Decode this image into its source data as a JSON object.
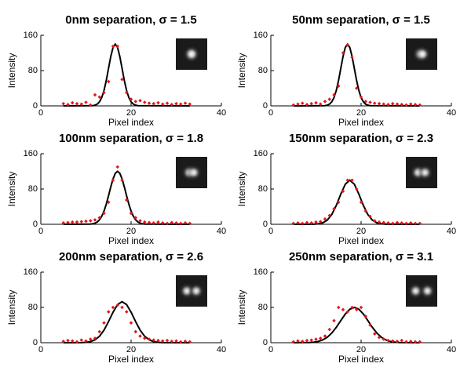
{
  "chart_data": [
    {
      "type": "line",
      "title": "0nm separation, σ = 1.5",
      "xlabel": "Pixel index",
      "ylabel": "Intensity",
      "xlim": [
        0,
        40
      ],
      "ylim": [
        0,
        160
      ],
      "xticks": [
        0,
        20,
        40
      ],
      "yticks": [
        0,
        80,
        160
      ],
      "series": [
        {
          "type": "scatter",
          "color": "#e8141a",
          "x": [
            5,
            6,
            7,
            8,
            9,
            10,
            11,
            12,
            13,
            14,
            15,
            16,
            17,
            18,
            19,
            20,
            21,
            22,
            23,
            24,
            25,
            26,
            27,
            28,
            29,
            30,
            31,
            32,
            33
          ],
          "values": [
            5,
            3,
            7,
            5,
            4,
            8,
            2,
            25,
            20,
            30,
            55,
            135,
            135,
            60,
            30,
            15,
            10,
            12,
            8,
            6,
            5,
            7,
            4,
            6,
            3,
            5,
            4,
            6,
            4
          ]
        },
        {
          "type": "line",
          "color": "#000000",
          "x": [
            5,
            11.5,
            12,
            12.5,
            13,
            13.5,
            14,
            14.5,
            15,
            15.5,
            16,
            16.5,
            17,
            17.5,
            18,
            18.5,
            19,
            19.5,
            20,
            20.5,
            21,
            21.5,
            33
          ],
          "values": [
            0,
            0.5,
            1.6,
            4,
            9.2,
            18.9,
            34.9,
            57.5,
            84.9,
            112.1,
            132.4,
            140,
            132.4,
            112.1,
            84.9,
            57.5,
            34.9,
            18.9,
            9.2,
            4,
            1.6,
            0.5,
            0
          ]
        }
      ]
    },
    {
      "type": "line",
      "title": "50nm separation, σ = 1.5",
      "xlabel": "Pixel index",
      "ylabel": "Intensity",
      "xlim": [
        0,
        40
      ],
      "ylim": [
        0,
        160
      ],
      "xticks": [
        0,
        20,
        40
      ],
      "yticks": [
        0,
        80,
        160
      ],
      "series": [
        {
          "type": "scatter",
          "color": "#e8141a",
          "x": [
            5,
            6,
            7,
            8,
            9,
            10,
            11,
            12,
            13,
            14,
            15,
            16,
            17,
            18,
            19,
            20,
            21,
            22,
            23,
            24,
            25,
            26,
            27,
            28,
            29,
            30,
            31,
            32,
            33
          ],
          "values": [
            2,
            4,
            6,
            3,
            5,
            7,
            4,
            10,
            15,
            25,
            45,
            120,
            138,
            110,
            40,
            20,
            10,
            8,
            6,
            5,
            4,
            3,
            5,
            4,
            3,
            2,
            4,
            3,
            2
          ]
        },
        {
          "type": "line",
          "color": "#000000",
          "x": [
            5,
            12,
            12.5,
            13,
            13.5,
            14,
            14.5,
            15,
            15.5,
            16,
            16.5,
            17,
            17.5,
            18,
            18.5,
            19,
            19.5,
            20,
            20.5,
            21,
            21.5,
            22,
            33
          ],
          "values": [
            0,
            0.5,
            1.6,
            4,
            9.2,
            18.9,
            34.9,
            57.5,
            84.9,
            112.1,
            132.4,
            140,
            132.4,
            112.1,
            84.9,
            57.5,
            34.9,
            18.9,
            9.2,
            4,
            1.6,
            0.5,
            0
          ]
        }
      ]
    },
    {
      "type": "line",
      "title": "100nm separation, σ = 1.8",
      "xlabel": "Pixel index",
      "ylabel": "Intensity",
      "xlim": [
        0,
        40
      ],
      "ylim": [
        0,
        160
      ],
      "xticks": [
        0,
        20,
        40
      ],
      "yticks": [
        0,
        80,
        160
      ],
      "series": [
        {
          "type": "scatter",
          "color": "#e8141a",
          "x": [
            5,
            6,
            7,
            8,
            9,
            10,
            11,
            12,
            13,
            14,
            15,
            16,
            17,
            18,
            19,
            20,
            21,
            22,
            23,
            24,
            25,
            26,
            27,
            28,
            29,
            30,
            31,
            32,
            33
          ],
          "values": [
            3,
            4,
            5,
            5,
            6,
            7,
            8,
            10,
            15,
            25,
            50,
            100,
            130,
            100,
            55,
            25,
            15,
            8,
            5,
            4,
            3,
            5,
            3,
            2,
            4,
            3,
            2,
            3,
            2
          ]
        },
        {
          "type": "line",
          "color": "#000000",
          "x": [
            5,
            11,
            11.5,
            12,
            12.5,
            13,
            13.5,
            14,
            14.5,
            15,
            15.5,
            16,
            16.5,
            17,
            17.5,
            18,
            18.5,
            19,
            19.5,
            20,
            20.5,
            21,
            21.5,
            22,
            22.5,
            23,
            33
          ],
          "values": [
            0,
            0.5,
            1.1,
            2.5,
            5.3,
            10.2,
            18.1,
            29.9,
            45.7,
            64.7,
            84.8,
            102.9,
            115.5,
            120,
            115.5,
            102.9,
            84.8,
            64.7,
            45.7,
            29.9,
            18.1,
            10.2,
            5.3,
            2.5,
            1.1,
            0.5,
            0
          ]
        }
      ]
    },
    {
      "type": "line",
      "title": "150nm separation, σ = 2.3",
      "xlabel": "Pixel index",
      "ylabel": "Intensity",
      "xlim": [
        0,
        40
      ],
      "ylim": [
        0,
        160
      ],
      "xticks": [
        0,
        20,
        40
      ],
      "yticks": [
        0,
        80,
        160
      ],
      "series": [
        {
          "type": "scatter",
          "color": "#e8141a",
          "x": [
            5,
            6,
            7,
            8,
            9,
            10,
            11,
            12,
            13,
            14,
            15,
            16,
            17,
            18,
            19,
            20,
            21,
            22,
            23,
            24,
            25,
            26,
            27,
            28,
            29,
            30,
            31,
            32,
            33
          ],
          "values": [
            2,
            3,
            2,
            4,
            3,
            5,
            6,
            12,
            20,
            35,
            50,
            75,
            100,
            100,
            80,
            50,
            30,
            18,
            8,
            5,
            4,
            3,
            2,
            4,
            3,
            2,
            3,
            2,
            2
          ]
        },
        {
          "type": "line",
          "color": "#000000",
          "x": [
            5,
            9.5,
            10.5,
            11.5,
            12.5,
            13.5,
            14.5,
            15.5,
            16.5,
            17.5,
            18.5,
            19.5,
            20.5,
            21.5,
            22.5,
            23.5,
            24.5,
            25.5,
            33
          ],
          "values": [
            0,
            0.2,
            1,
            3.3,
            9.4,
            22,
            42.7,
            68.5,
            91,
            100,
            91,
            68.5,
            42.7,
            22,
            9.4,
            3.3,
            1,
            0.2,
            0
          ]
        }
      ]
    },
    {
      "type": "line",
      "title": "200nm separation, σ = 2.6",
      "xlabel": "Pixel index",
      "ylabel": "Intensity",
      "xlim": [
        0,
        40
      ],
      "ylim": [
        0,
        160
      ],
      "xticks": [
        0,
        20,
        40
      ],
      "yticks": [
        0,
        80,
        160
      ],
      "series": [
        {
          "type": "scatter",
          "color": "#e8141a",
          "x": [
            5,
            6,
            7,
            8,
            9,
            10,
            11,
            12,
            13,
            14,
            15,
            16,
            17,
            18,
            19,
            20,
            21,
            22,
            23,
            24,
            25,
            26,
            27,
            28,
            29,
            30,
            31,
            32,
            33
          ],
          "values": [
            3,
            5,
            4,
            2,
            6,
            4,
            8,
            10,
            25,
            45,
            70,
            80,
            85,
            80,
            70,
            45,
            25,
            15,
            10,
            8,
            6,
            5,
            4,
            5,
            3,
            4,
            2,
            3,
            2
          ]
        },
        {
          "type": "line",
          "color": "#000000",
          "x": [
            5,
            9,
            10,
            11,
            12,
            13,
            14,
            15,
            16,
            17,
            18,
            19,
            20,
            21,
            22,
            23,
            24,
            25,
            26,
            27,
            33
          ],
          "values": [
            0,
            0.2,
            0.8,
            2.5,
            6.5,
            14.6,
            28.5,
            47.8,
            69.2,
            86.4,
            93,
            86.4,
            69.2,
            47.8,
            28.5,
            14.6,
            6.5,
            2.5,
            0.8,
            0.2,
            0
          ]
        }
      ]
    },
    {
      "type": "line",
      "title": "250nm separation, σ = 3.1",
      "xlabel": "Pixel index",
      "ylabel": "Intensity",
      "xlim": [
        0,
        40
      ],
      "ylim": [
        0,
        160
      ],
      "xticks": [
        0,
        20,
        40
      ],
      "yticks": [
        0,
        80,
        160
      ],
      "series": [
        {
          "type": "scatter",
          "color": "#e8141a",
          "x": [
            5,
            6,
            7,
            8,
            9,
            10,
            11,
            12,
            13,
            14,
            15,
            16,
            17,
            18,
            19,
            20,
            21,
            22,
            23,
            24,
            25,
            26,
            27,
            28,
            29,
            30,
            31,
            32,
            33
          ],
          "values": [
            2,
            4,
            3,
            5,
            6,
            8,
            10,
            15,
            30,
            50,
            80,
            75,
            70,
            80,
            75,
            80,
            60,
            40,
            20,
            12,
            8,
            5,
            4,
            3,
            5,
            2,
            3,
            2,
            2
          ]
        },
        {
          "type": "line",
          "color": "#000000",
          "x": [
            5,
            8.5,
            9.5,
            10.5,
            11.5,
            12.5,
            13.5,
            14.5,
            15.5,
            16.5,
            17.5,
            18.5,
            19.5,
            20.5,
            21.5,
            22.5,
            23.5,
            24.5,
            25.5,
            26.5,
            27.5,
            28.5,
            33
          ],
          "values": [
            0,
            0.4,
            1.2,
            2.9,
            6.3,
            12.3,
            21.8,
            34.8,
            50.1,
            65,
            75.9,
            80,
            75.9,
            65,
            50.1,
            34.8,
            21.8,
            12.3,
            6.3,
            2.9,
            1.2,
            0.4,
            0
          ]
        }
      ]
    }
  ]
}
